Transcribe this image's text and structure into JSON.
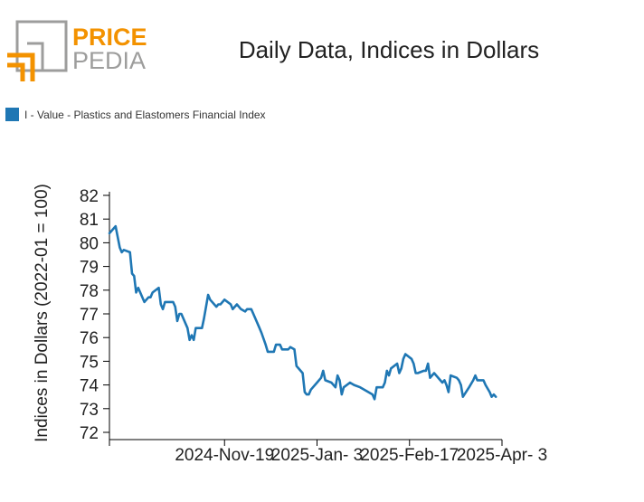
{
  "logo": {
    "word_top": "PRICE",
    "word_bottom": "PEDIA"
  },
  "chart_data": {
    "type": "line",
    "title": "Daily Data, Indices in Dollars",
    "ylabel": "Indices in Dollars (2022-01 = 100)",
    "xlabel": "",
    "ylim": [
      72,
      82
    ],
    "xlim": [
      "2024-09-24",
      "2025-04-03"
    ],
    "grid": false,
    "legend_position": "top-left",
    "x_ticks": [
      "2024-Nov-19",
      "2025-Jan- 3",
      "2025-Feb-17",
      "2025-Apr- 3"
    ],
    "x_tick_dates": [
      "2024-11-19",
      "2025-01-03",
      "2025-02-17",
      "2025-04-03"
    ],
    "y_ticks": [
      72,
      73,
      74,
      75,
      76,
      77,
      78,
      79,
      80,
      81,
      82
    ],
    "colors": {
      "series": "#1f77b4",
      "logo_orange": "#f39200",
      "logo_grey": "#9d9d9c"
    },
    "series": [
      {
        "name": "I - Value - Plastics and Elastomers Financial Index",
        "points": [
          [
            "2024-09-24",
            80.4
          ],
          [
            "2024-09-27",
            80.7
          ],
          [
            "2024-09-29",
            79.8
          ],
          [
            "2024-09-30",
            79.6
          ],
          [
            "2024-10-01",
            79.7
          ],
          [
            "2024-10-04",
            79.6
          ],
          [
            "2024-10-05",
            78.7
          ],
          [
            "2024-10-06",
            78.6
          ],
          [
            "2024-10-07",
            77.9
          ],
          [
            "2024-10-08",
            78.1
          ],
          [
            "2024-10-11",
            77.5
          ],
          [
            "2024-10-13",
            77.7
          ],
          [
            "2024-10-14",
            77.7
          ],
          [
            "2024-10-15",
            77.9
          ],
          [
            "2024-10-18",
            78.1
          ],
          [
            "2024-10-19",
            77.4
          ],
          [
            "2024-10-20",
            77.2
          ],
          [
            "2024-10-21",
            77.5
          ],
          [
            "2024-10-25",
            77.5
          ],
          [
            "2024-10-26",
            77.3
          ],
          [
            "2024-10-27",
            76.7
          ],
          [
            "2024-10-28",
            77.0
          ],
          [
            "2024-10-29",
            77.0
          ],
          [
            "2024-11-01",
            76.4
          ],
          [
            "2024-11-02",
            75.9
          ],
          [
            "2024-11-03",
            76.1
          ],
          [
            "2024-11-04",
            75.9
          ],
          [
            "2024-11-05",
            76.4
          ],
          [
            "2024-11-08",
            76.4
          ],
          [
            "2024-11-09",
            76.8
          ],
          [
            "2024-11-11",
            77.8
          ],
          [
            "2024-11-12",
            77.6
          ],
          [
            "2024-11-15",
            77.3
          ],
          [
            "2024-11-16",
            77.4
          ],
          [
            "2024-11-17",
            77.4
          ],
          [
            "2024-11-18",
            77.5
          ],
          [
            "2024-11-19",
            77.6
          ],
          [
            "2024-11-22",
            77.4
          ],
          [
            "2024-11-23",
            77.2
          ],
          [
            "2024-11-24",
            77.3
          ],
          [
            "2024-11-25",
            77.4
          ],
          [
            "2024-11-27",
            77.2
          ],
          [
            "2024-11-29",
            77.1
          ],
          [
            "2024-11-30",
            77.2
          ],
          [
            "2024-12-02",
            77.2
          ],
          [
            "2024-12-03",
            77.0
          ],
          [
            "2024-12-06",
            76.4
          ],
          [
            "2024-12-07",
            76.2
          ],
          [
            "2024-12-09",
            75.7
          ],
          [
            "2024-12-10",
            75.4
          ],
          [
            "2024-12-13",
            75.4
          ],
          [
            "2024-12-14",
            75.7
          ],
          [
            "2024-12-16",
            75.7
          ],
          [
            "2024-12-17",
            75.5
          ],
          [
            "2024-12-20",
            75.5
          ],
          [
            "2024-12-21",
            75.6
          ],
          [
            "2024-12-23",
            75.5
          ],
          [
            "2024-12-24",
            74.8
          ],
          [
            "2024-12-27",
            74.5
          ],
          [
            "2024-12-28",
            73.7
          ],
          [
            "2024-12-29",
            73.6
          ],
          [
            "2024-12-30",
            73.6
          ],
          [
            "2024-12-31",
            73.8
          ],
          [
            "2025-01-03",
            74.1
          ],
          [
            "2025-01-05",
            74.3
          ],
          [
            "2025-01-06",
            74.6
          ],
          [
            "2025-01-07",
            74.2
          ],
          [
            "2025-01-10",
            74.1
          ],
          [
            "2025-01-11",
            74.0
          ],
          [
            "2025-01-12",
            73.9
          ],
          [
            "2025-01-13",
            74.4
          ],
          [
            "2025-01-14",
            74.2
          ],
          [
            "2025-01-15",
            73.6
          ],
          [
            "2025-01-16",
            73.9
          ],
          [
            "2025-01-19",
            74.1
          ],
          [
            "2025-01-21",
            74.0
          ],
          [
            "2025-01-24",
            73.9
          ],
          [
            "2025-01-28",
            73.7
          ],
          [
            "2025-01-30",
            73.6
          ],
          [
            "2025-01-31",
            73.4
          ],
          [
            "2025-02-01",
            73.9
          ],
          [
            "2025-02-04",
            73.9
          ],
          [
            "2025-02-05",
            74.1
          ],
          [
            "2025-02-06",
            74.6
          ],
          [
            "2025-02-07",
            74.4
          ],
          [
            "2025-02-08",
            74.7
          ],
          [
            "2025-02-11",
            74.9
          ],
          [
            "2025-02-12",
            74.5
          ],
          [
            "2025-02-13",
            74.7
          ],
          [
            "2025-02-14",
            75.1
          ],
          [
            "2025-02-15",
            75.3
          ],
          [
            "2025-02-18",
            75.1
          ],
          [
            "2025-02-19",
            74.9
          ],
          [
            "2025-02-20",
            74.5
          ],
          [
            "2025-02-21",
            74.5
          ],
          [
            "2025-02-24",
            74.6
          ],
          [
            "2025-02-25",
            74.6
          ],
          [
            "2025-02-26",
            74.9
          ],
          [
            "2025-02-27",
            74.3
          ],
          [
            "2025-02-28",
            74.4
          ],
          [
            "2025-03-01",
            74.5
          ],
          [
            "2025-03-04",
            74.2
          ],
          [
            "2025-03-05",
            74.1
          ],
          [
            "2025-03-06",
            74.2
          ],
          [
            "2025-03-07",
            74.0
          ],
          [
            "2025-03-08",
            73.7
          ],
          [
            "2025-03-09",
            74.4
          ],
          [
            "2025-03-12",
            74.3
          ],
          [
            "2025-03-13",
            74.2
          ],
          [
            "2025-03-14",
            74.0
          ],
          [
            "2025-03-15",
            73.5
          ],
          [
            "2025-03-18",
            73.9
          ],
          [
            "2025-03-20",
            74.2
          ],
          [
            "2025-03-21",
            74.4
          ],
          [
            "2025-03-22",
            74.2
          ],
          [
            "2025-03-25",
            74.2
          ],
          [
            "2025-03-26",
            74.0
          ],
          [
            "2025-03-28",
            73.7
          ],
          [
            "2025-03-29",
            73.5
          ],
          [
            "2025-03-30",
            73.6
          ],
          [
            "2025-03-31",
            73.5
          ]
        ]
      }
    ]
  }
}
